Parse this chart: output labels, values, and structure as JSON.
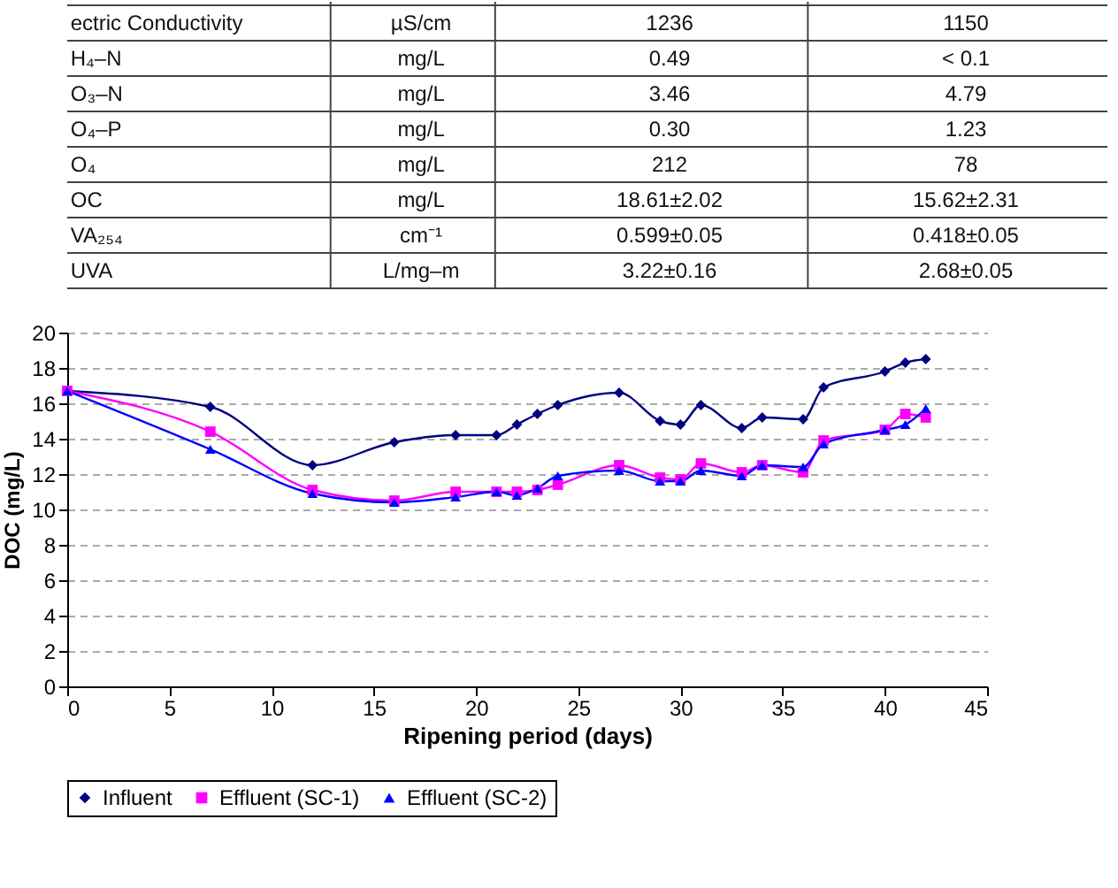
{
  "chart_data": [
    {
      "type": "other",
      "annotations": [
        "ectric Conductivity",
        "µS/cm",
        "1236",
        "1150",
        "H₄–N",
        "mg/L",
        "0.49",
        "< 0.1",
        "O₃–N",
        "mg/L",
        "3.46",
        "4.79",
        "O₄–P",
        "mg/L",
        "0.30",
        "1.23",
        "O₄",
        "mg/L",
        "212",
        "78",
        "OC",
        "mg/L",
        "18.61±2.02",
        "15.62±2.31",
        "VA₂₅₄",
        "cm⁻¹",
        "0.599±0.05",
        "0.418±0.05",
        "UVA",
        "L/mg–m",
        "3.22±0.16",
        "2.68±0.05"
      ]
    },
    {
      "type": "line",
      "xlabel": "Ripening period (days)",
      "ylabel": "DOC (mg/L)",
      "x": [
        0,
        7,
        12,
        16,
        19,
        21,
        22,
        23,
        24,
        27,
        29,
        30,
        31,
        33,
        34,
        36,
        37,
        40,
        41,
        42
      ],
      "series": [
        {
          "name": "Influent",
          "color": "#000080",
          "marker": "diamond",
          "values": [
            16.7,
            15.8,
            12.5,
            13.8,
            14.2,
            14.2,
            14.8,
            15.4,
            15.9,
            16.6,
            15.0,
            14.8,
            15.9,
            14.6,
            15.2,
            15.1,
            16.9,
            17.8,
            18.3,
            18.5
          ]
        },
        {
          "name": "Effluent (SC-1)",
          "color": "#ff00ff",
          "marker": "square",
          "values": [
            16.7,
            14.4,
            11.1,
            10.5,
            11.0,
            11.0,
            11.0,
            11.1,
            11.4,
            12.5,
            11.8,
            11.7,
            12.6,
            12.1,
            12.5,
            12.1,
            13.9,
            14.5,
            15.4,
            15.2
          ]
        },
        {
          "name": "Effluent (SC-2)",
          "color": "#0000ff",
          "marker": "triangle",
          "values": [
            16.7,
            13.4,
            10.9,
            10.4,
            10.7,
            11.0,
            10.8,
            11.2,
            11.9,
            12.2,
            11.6,
            11.6,
            12.2,
            11.9,
            12.5,
            12.4,
            13.7,
            14.5,
            14.8,
            15.7
          ]
        }
      ],
      "xlim": [
        0,
        45
      ],
      "xticks": [
        0,
        5,
        10,
        15,
        20,
        25,
        30,
        35,
        40,
        45
      ],
      "ylim": [
        0,
        20
      ],
      "yticks": [
        0,
        2,
        4,
        6,
        8,
        10,
        12,
        14,
        16,
        18,
        20
      ],
      "grid": "y",
      "legend": "bottom"
    }
  ]
}
